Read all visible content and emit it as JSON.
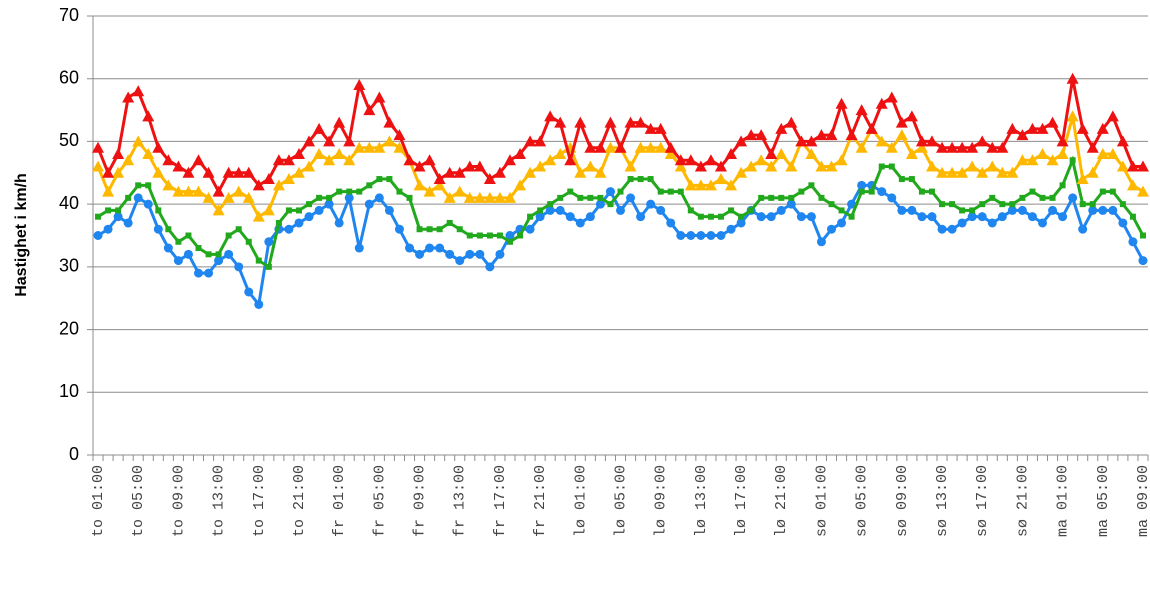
{
  "chart_data": {
    "type": "line",
    "y_label": "Hastighet i km/h",
    "categories": [
      "to 01:00",
      null,
      null,
      null,
      "to 05:00",
      null,
      null,
      null,
      "to 09:00",
      null,
      null,
      null,
      "to 13:00",
      null,
      null,
      null,
      "to 17:00",
      null,
      null,
      null,
      "to 21:00",
      null,
      null,
      null,
      "fr 01:00",
      null,
      null,
      null,
      "fr 05:00",
      null,
      null,
      null,
      "fr 09:00",
      null,
      null,
      null,
      "fr 13:00",
      null,
      null,
      null,
      "fr 17:00",
      null,
      null,
      null,
      "fr 21:00",
      null,
      null,
      null,
      "lø 01:00",
      null,
      null,
      null,
      "lø 05:00",
      null,
      null,
      null,
      "lø 09:00",
      null,
      null,
      null,
      "lø 13:00",
      null,
      null,
      null,
      "lø 17:00",
      null,
      null,
      null,
      "lø 21:00",
      null,
      null,
      null,
      "sø 01:00",
      null,
      null,
      null,
      "sø 05:00",
      null,
      null,
      null,
      "sø 09:00",
      null,
      null,
      null,
      "sø 13:00",
      null,
      null,
      null,
      "sø 17:00",
      null,
      null,
      null,
      "sø 21:00",
      null,
      null,
      null,
      "ma 01:00",
      null,
      null,
      null,
      "ma 05:00",
      null,
      null,
      null,
      "ma 09:00"
    ],
    "series": [
      {
        "color": "#1f86f0",
        "marker": "circle",
        "values": [
          35,
          36,
          38,
          37,
          41,
          40,
          36,
          33,
          31,
          32,
          29,
          29,
          31,
          32,
          30,
          26,
          24,
          34,
          36,
          36,
          37,
          38,
          39,
          40,
          37,
          41,
          33,
          40,
          41,
          39,
          36,
          33,
          32,
          33,
          33,
          32,
          31,
          32,
          32,
          30,
          32,
          35,
          36,
          36,
          38,
          39,
          39,
          38,
          37,
          38,
          40,
          42,
          39,
          41,
          38,
          40,
          39,
          37,
          35,
          35,
          35,
          35,
          35,
          36,
          37,
          39,
          38,
          38,
          39,
          40,
          38,
          38,
          34,
          36,
          37,
          40,
          43,
          43,
          42,
          41,
          39,
          39,
          38,
          38,
          36,
          36,
          37,
          38,
          38,
          37,
          38,
          39,
          39,
          38,
          37,
          39,
          38,
          41,
          36,
          39,
          39,
          39,
          37,
          34,
          31
        ]
      },
      {
        "color": "#22a81c",
        "marker": "square",
        "values": [
          38,
          39,
          39,
          41,
          43,
          43,
          39,
          36,
          34,
          35,
          33,
          32,
          32,
          35,
          36,
          34,
          31,
          30,
          37,
          39,
          39,
          40,
          41,
          41,
          42,
          42,
          42,
          43,
          44,
          44,
          42,
          41,
          36,
          36,
          36,
          37,
          36,
          35,
          35,
          35,
          35,
          34,
          35,
          38,
          39,
          40,
          41,
          42,
          41,
          41,
          41,
          40,
          42,
          44,
          44,
          44,
          42,
          42,
          42,
          39,
          38,
          38,
          38,
          39,
          38,
          39,
          41,
          41,
          41,
          41,
          42,
          43,
          41,
          40,
          39,
          38,
          42,
          42,
          46,
          46,
          44,
          44,
          42,
          42,
          40,
          40,
          39,
          39,
          40,
          41,
          40,
          40,
          41,
          42,
          41,
          41,
          43,
          47,
          40,
          40,
          42,
          42,
          40,
          38,
          35
        ]
      },
      {
        "color": "#ffb800",
        "marker": "triangle",
        "values": [
          46,
          42,
          45,
          47,
          50,
          48,
          45,
          43,
          42,
          42,
          42,
          41,
          39,
          41,
          42,
          41,
          38,
          39,
          43,
          44,
          45,
          46,
          48,
          47,
          48,
          47,
          49,
          49,
          49,
          50,
          49,
          47,
          43,
          42,
          43,
          41,
          42,
          41,
          41,
          41,
          41,
          41,
          43,
          45,
          46,
          47,
          48,
          49,
          45,
          46,
          45,
          49,
          49,
          46,
          49,
          49,
          49,
          48,
          46,
          43,
          43,
          43,
          44,
          43,
          45,
          46,
          47,
          46,
          48,
          46,
          50,
          48,
          46,
          46,
          47,
          51,
          49,
          52,
          50,
          49,
          51,
          48,
          49,
          46,
          45,
          45,
          45,
          46,
          45,
          46,
          45,
          45,
          47,
          47,
          48,
          47,
          48,
          54,
          44,
          45,
          48,
          48,
          46,
          43,
          42
        ]
      },
      {
        "color": "#ee1111",
        "marker": "triangle",
        "values": [
          49,
          45,
          48,
          57,
          58,
          54,
          49,
          47,
          46,
          45,
          47,
          45,
          42,
          45,
          45,
          45,
          43,
          44,
          47,
          47,
          48,
          50,
          52,
          50,
          53,
          50,
          59,
          55,
          57,
          53,
          51,
          47,
          46,
          47,
          44,
          45,
          45,
          46,
          46,
          44,
          45,
          47,
          48,
          50,
          50,
          54,
          53,
          47,
          53,
          49,
          49,
          53,
          49,
          53,
          53,
          52,
          52,
          49,
          47,
          47,
          46,
          47,
          46,
          48,
          50,
          51,
          51,
          48,
          52,
          53,
          50,
          50,
          51,
          51,
          56,
          51,
          55,
          52,
          56,
          57,
          53,
          54,
          50,
          50,
          49,
          49,
          49,
          49,
          50,
          49,
          49,
          52,
          51,
          52,
          52,
          53,
          50,
          60,
          52,
          49,
          52,
          54,
          50,
          46,
          46
        ]
      }
    ],
    "ylim": [
      0,
      70
    ],
    "yticks": [
      0,
      10,
      20,
      30,
      40,
      50,
      60,
      70
    ],
    "grid": true
  }
}
